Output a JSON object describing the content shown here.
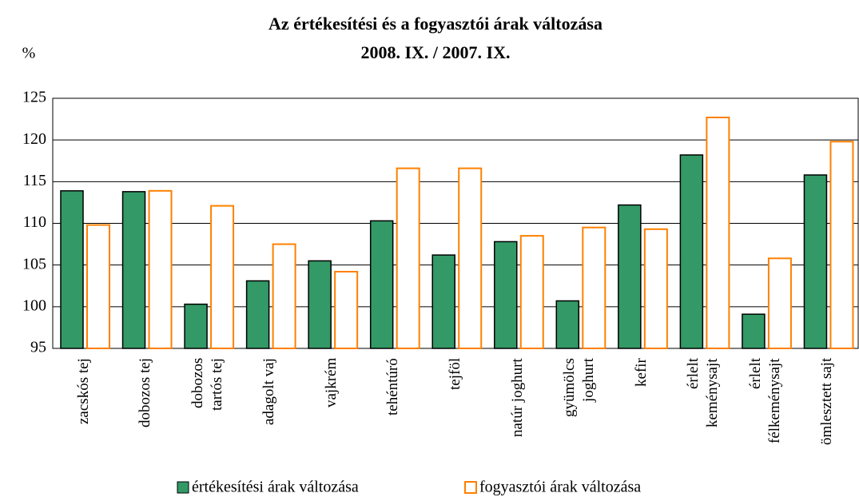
{
  "chart_data": {
    "type": "bar",
    "title": "Az értékesítési és a fogyasztói árak változása",
    "subtitle": "2008. IX. / 2007. IX.",
    "y_axis_label": "%",
    "categories": [
      "zacskós tej",
      "dobozos tej",
      "dobozos\ntartós tej",
      "adagolt vaj",
      "vajkrém",
      "tehéntúró",
      "tejföl",
      "natúr joghurt",
      "gyümölcs\njoghurt",
      "kefir",
      "érlelt\nkeménysajt",
      "érlelt\nfélkeménysajt",
      "ömlesztett sajt"
    ],
    "series": [
      {
        "name": "értékesítési árak változása",
        "color": "#339966",
        "values": [
          113.9,
          113.8,
          100.3,
          103.1,
          105.5,
          110.3,
          106.2,
          107.8,
          100.7,
          112.2,
          118.2,
          99.1,
          115.8
        ]
      },
      {
        "name": "fogyasztói árak változása",
        "color": "#ff8000",
        "values": [
          109.8,
          113.9,
          112.1,
          107.5,
          104.2,
          116.6,
          116.6,
          108.5,
          109.5,
          109.3,
          122.7,
          105.8,
          119.8
        ]
      }
    ],
    "ylim": [
      95,
      125
    ],
    "yticks": [
      95,
      100,
      105,
      110,
      115,
      120,
      125
    ],
    "grid": true
  }
}
